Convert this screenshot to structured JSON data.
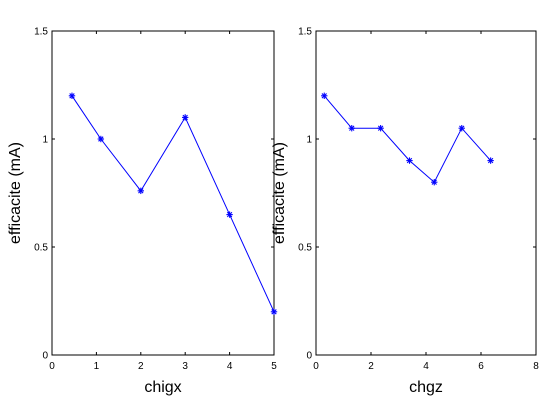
{
  "chart_data": [
    {
      "type": "line",
      "xlabel": "chigx",
      "ylabel": "efficacite (mA)",
      "xlim": [
        0,
        5
      ],
      "ylim": [
        0,
        1.5
      ],
      "xticks": [
        "0",
        "1",
        "2",
        "3",
        "4",
        "5"
      ],
      "yticks": [
        "0",
        "0.5",
        "1",
        "1.5"
      ],
      "grid": false,
      "series": [
        {
          "color": "#0000ff",
          "marker": "asterisk",
          "x": [
            0.45,
            1.1,
            2.0,
            3.0,
            4.0,
            5.0
          ],
          "y": [
            1.2,
            1.0,
            0.76,
            1.1,
            0.65,
            0.2
          ]
        }
      ]
    },
    {
      "type": "line",
      "xlabel": "chgz",
      "ylabel": "efficacite (mA)",
      "xlim": [
        0,
        8
      ],
      "ylim": [
        0,
        1.5
      ],
      "xticks": [
        "0",
        "2",
        "4",
        "6",
        "8"
      ],
      "yticks": [
        "0",
        "0.5",
        "1",
        "1.5"
      ],
      "grid": false,
      "series": [
        {
          "color": "#0000ff",
          "marker": "asterisk",
          "x": [
            0.3,
            1.3,
            2.35,
            3.4,
            4.3,
            5.3,
            6.35
          ],
          "y": [
            1.2,
            1.05,
            1.05,
            0.9,
            0.8,
            1.05,
            0.9
          ]
        }
      ]
    }
  ]
}
